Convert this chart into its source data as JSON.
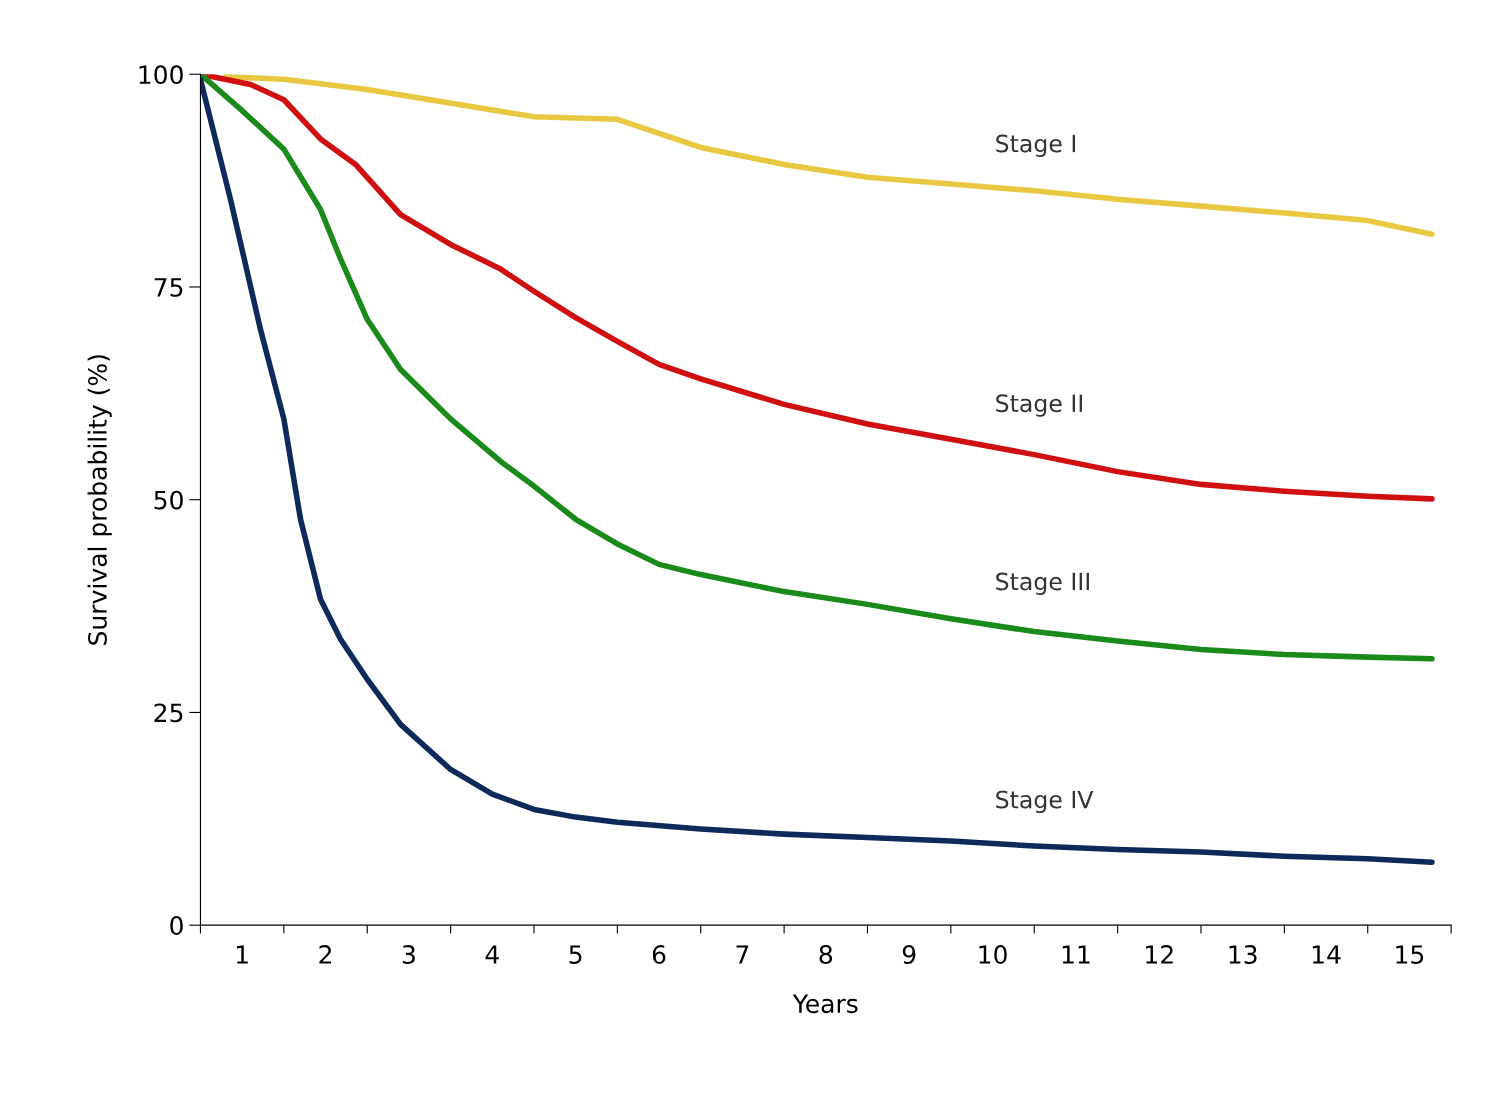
{
  "chart_data": {
    "type": "line",
    "xlabel": "Years",
    "ylabel": "Survival probability (%)",
    "xlim": [
      0,
      15
    ],
    "ylim": [
      0,
      100
    ],
    "yticks": [
      0,
      25,
      50,
      75,
      100
    ],
    "xticks": [
      {
        "value": 0,
        "label": null
      },
      {
        "value": 1,
        "label": null
      },
      {
        "value": 2,
        "label": null
      },
      {
        "value": 3,
        "label": null
      },
      {
        "value": 4,
        "label": null
      },
      {
        "value": 5,
        "label": null
      },
      {
        "value": 6,
        "label": null
      },
      {
        "value": 7,
        "label": null
      },
      {
        "value": 8,
        "label": null
      },
      {
        "value": 9,
        "label": null
      },
      {
        "value": 10,
        "label": null
      },
      {
        "value": 11,
        "label": null
      },
      {
        "value": 12,
        "label": null
      },
      {
        "value": 13,
        "label": null
      },
      {
        "value": 14,
        "label": null
      },
      {
        "value": 15,
        "label": null
      },
      {
        "value": 0.5,
        "label": "1"
      },
      {
        "value": 1.5,
        "label": "2"
      },
      {
        "value": 2.5,
        "label": "3"
      },
      {
        "value": 3.5,
        "label": "4"
      },
      {
        "value": 4.5,
        "label": "5"
      },
      {
        "value": 5.5,
        "label": "6"
      },
      {
        "value": 6.5,
        "label": "7"
      },
      {
        "value": 7.5,
        "label": "8"
      },
      {
        "value": 8.5,
        "label": "9"
      },
      {
        "value": 9.5,
        "label": "10"
      },
      {
        "value": 10.5,
        "label": "11"
      },
      {
        "value": 11.5,
        "label": "12"
      },
      {
        "value": 12.5,
        "label": "13"
      },
      {
        "value": 13.5,
        "label": "14"
      },
      {
        "value": 14.5,
        "label": "15"
      }
    ],
    "grid": false,
    "legend": false,
    "marker": "none",
    "line_style": "solid",
    "series": [
      {
        "name": "Stage I",
        "color": "#e8c840",
        "x": [
          0.3,
          1,
          2,
          4,
          5,
          6,
          7,
          8,
          9,
          10,
          11,
          12,
          13,
          14,
          14.77
        ],
        "values": [
          99.7,
          99.4,
          98.2,
          95,
          94.7,
          91.4,
          89.4,
          87.9,
          87.1,
          86.3,
          85.3,
          84.5,
          83.7,
          82.8,
          81.2
        ]
      },
      {
        "name": "Stage II",
        "color": "#d01010",
        "x": [
          0,
          0.6,
          1,
          1.44,
          1.86,
          2.4,
          3,
          3.6,
          4,
          4.5,
          5,
          5.5,
          6,
          7,
          8,
          9,
          10,
          11,
          12,
          13,
          14,
          14.77
        ],
        "values": [
          100,
          98.8,
          97,
          92.4,
          89.4,
          83.5,
          80,
          77.1,
          74.5,
          71.4,
          68.6,
          65.9,
          64.2,
          61.2,
          58.9,
          57.1,
          55.3,
          53.3,
          51.8,
          51,
          50.4,
          50.1
        ]
      },
      {
        "name": "Stage III",
        "color": "#1a8a1a",
        "x": [
          0,
          0.48,
          1,
          1.44,
          1.68,
          2,
          2.4,
          3,
          3.6,
          4,
          4.5,
          5,
          5.5,
          6,
          7,
          8,
          9,
          10,
          11,
          12,
          13,
          14,
          14.77
        ],
        "values": [
          100,
          95.9,
          91.2,
          84.1,
          78.3,
          71.2,
          65.3,
          59.5,
          54.5,
          51.6,
          47.7,
          44.8,
          42.4,
          41.2,
          39.2,
          37.7,
          36,
          34.5,
          33.4,
          32.4,
          31.8,
          31.5,
          31.3
        ]
      },
      {
        "name": "Stage IV",
        "color": "#0d2a5a",
        "x": [
          0,
          0.36,
          0.72,
          1,
          1.2,
          1.44,
          1.68,
          2,
          2.4,
          3,
          3.5,
          4,
          4.5,
          5,
          6,
          7,
          8,
          9,
          10,
          11,
          12,
          13,
          14,
          14.77
        ],
        "values": [
          99.4,
          85.3,
          70,
          59.5,
          47.7,
          38.3,
          33.6,
          28.9,
          23.6,
          18.3,
          15.4,
          13.6,
          12.7,
          12.1,
          11.3,
          10.7,
          10.3,
          9.9,
          9.3,
          8.9,
          8.6,
          8.1,
          7.8,
          7.4
        ]
      }
    ]
  }
}
